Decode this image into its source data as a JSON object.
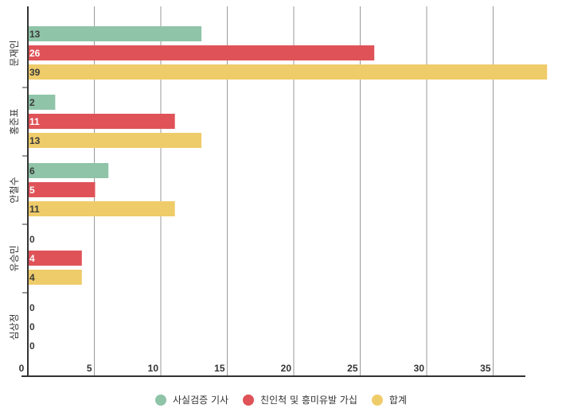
{
  "chart_data": {
    "type": "bar",
    "orientation": "horizontal",
    "categories": [
      "문재인",
      "홍준표",
      "안철수",
      "유승민",
      "심상정"
    ],
    "series": [
      {
        "name": "사실검증 기사",
        "color": "#8fc4a8",
        "values": [
          13,
          2,
          6,
          0,
          0
        ]
      },
      {
        "name": "친인척 및 흥미유발 가십",
        "color": "#df5358",
        "values": [
          26,
          11,
          5,
          4,
          0
        ]
      },
      {
        "name": "합계",
        "color": "#efcc6a",
        "values": [
          39,
          13,
          11,
          4,
          0
        ]
      }
    ],
    "x_ticks": [
      "0",
      "5",
      "10",
      "15",
      "20",
      "25",
      "30",
      "35"
    ],
    "xlim": [
      0,
      39
    ],
    "grid": true,
    "legend_position": "bottom"
  }
}
